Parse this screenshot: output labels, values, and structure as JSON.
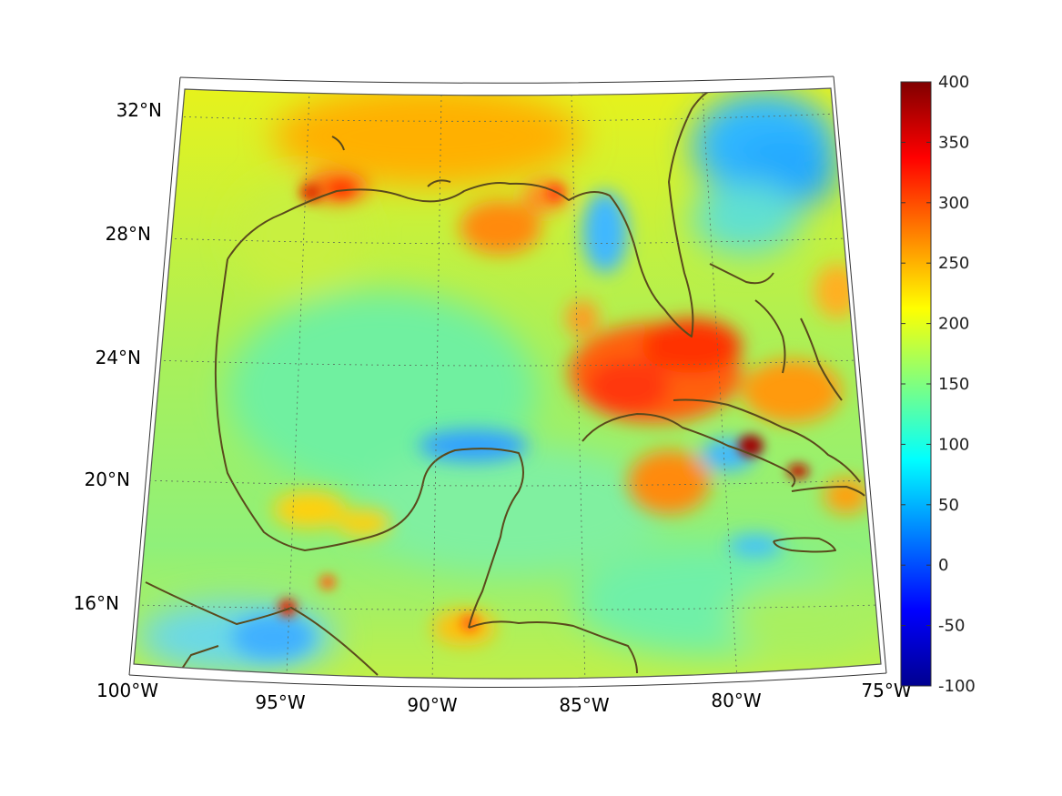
{
  "map": {
    "projection": "conic",
    "region": "Gulf of Mexico and Caribbean",
    "lon_range": [
      -100,
      -75
    ],
    "lat_range": [
      14,
      33
    ],
    "grid": true,
    "coastline_color": "#5a4a1c",
    "lat_ticks": [
      {
        "value": 32,
        "label": "32°N"
      },
      {
        "value": 28,
        "label": "28°N"
      },
      {
        "value": 24,
        "label": "24°N"
      },
      {
        "value": 20,
        "label": "20°N"
      },
      {
        "value": 16,
        "label": "16°N"
      }
    ],
    "lon_ticks": [
      {
        "value": -100,
        "label": "100°W"
      },
      {
        "value": -95,
        "label": "95°W"
      },
      {
        "value": -90,
        "label": "90°W"
      },
      {
        "value": -85,
        "label": "85°W"
      },
      {
        "value": -80,
        "label": "80°W"
      },
      {
        "value": -75,
        "label": "75°W"
      }
    ]
  },
  "colorbar": {
    "colormap": "jet",
    "range": [
      -100,
      400
    ],
    "ticks": [
      "400",
      "350",
      "300",
      "250",
      "200",
      "150",
      "100",
      "50",
      "0",
      "-50",
      "-100"
    ]
  }
}
